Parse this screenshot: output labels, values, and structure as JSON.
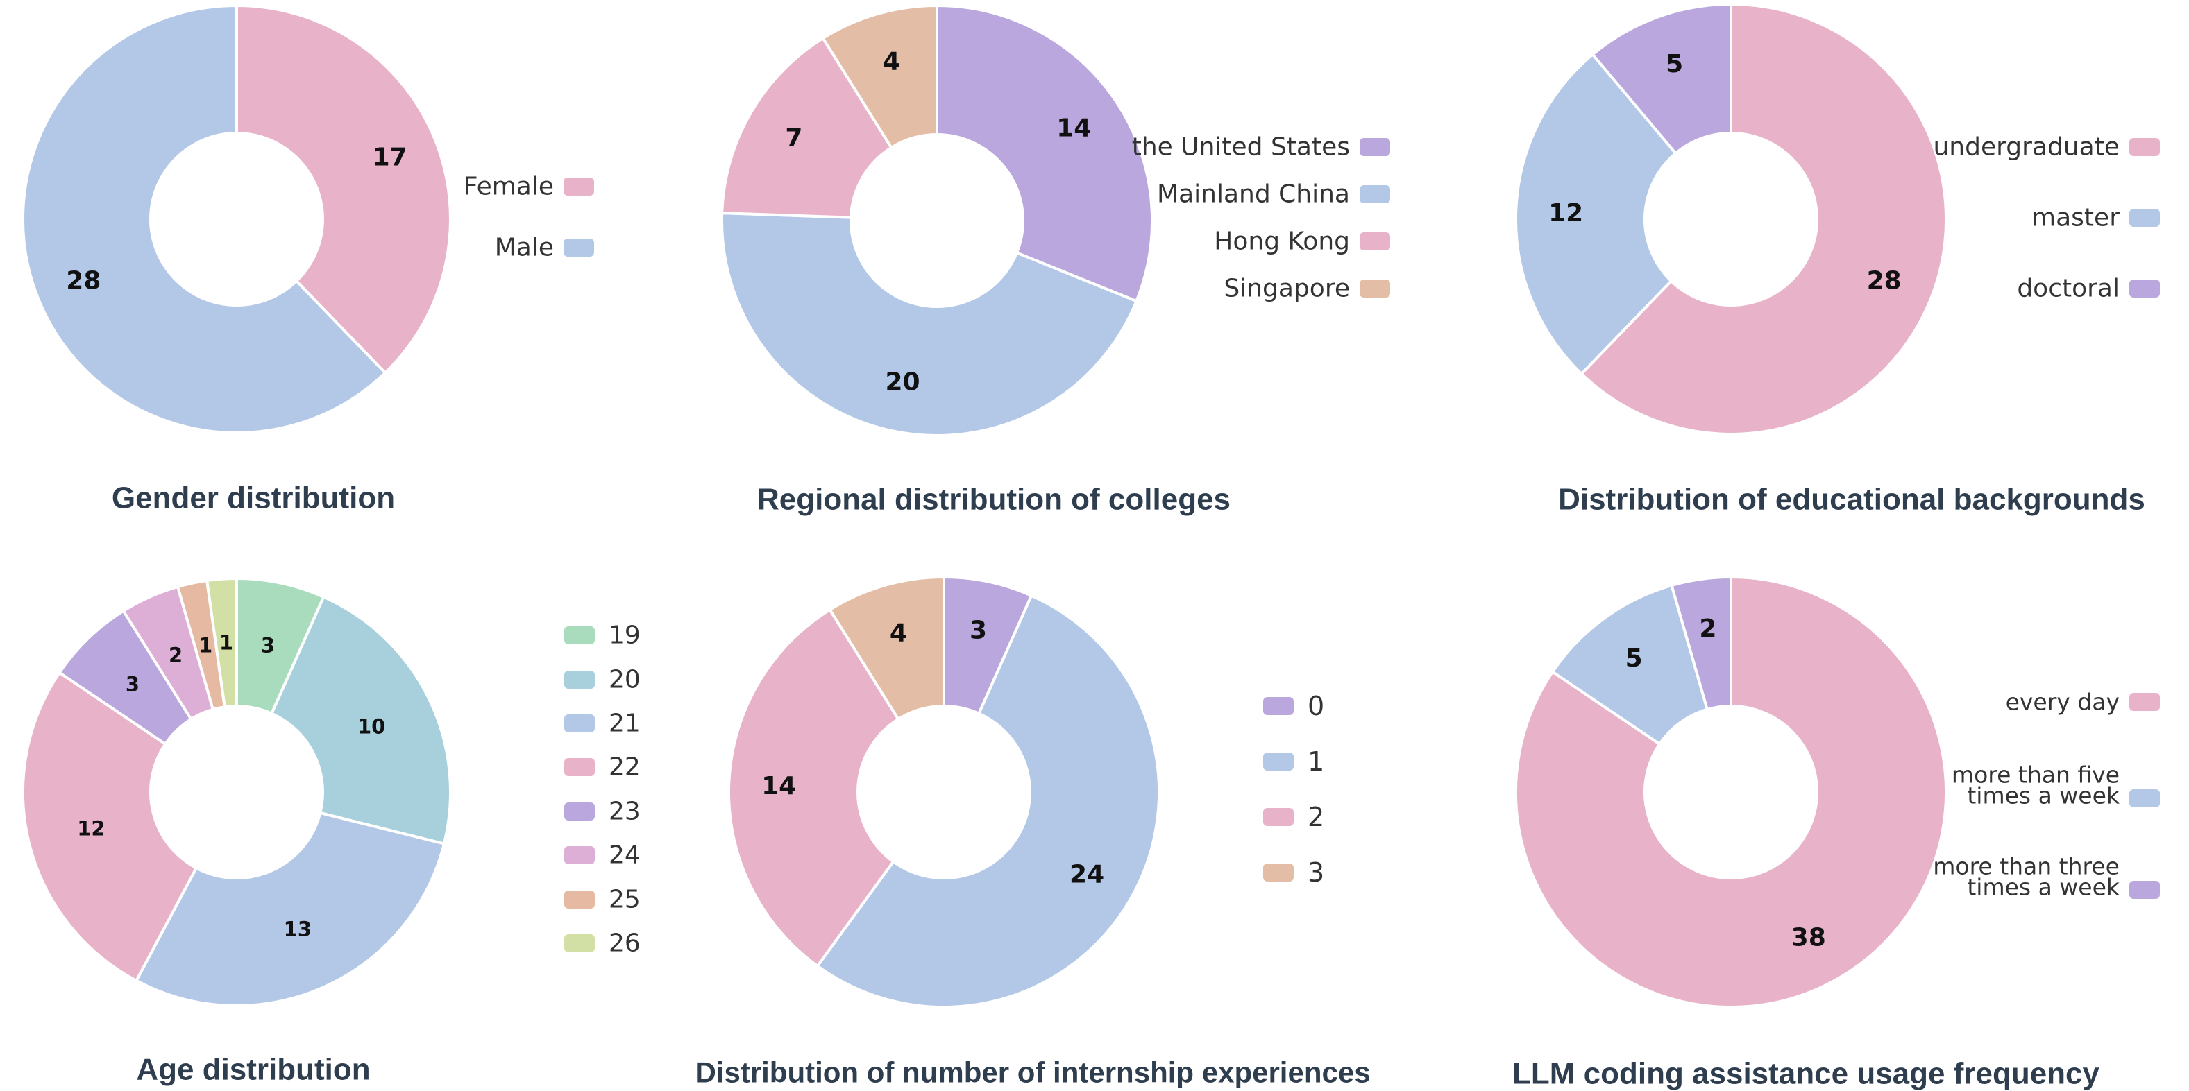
{
  "chart_data": [
    {
      "type": "pie",
      "title": "Gender distribution",
      "categories": [
        "Female",
        "Male"
      ],
      "values": [
        17,
        28
      ],
      "colors": [
        "#e8b3c9",
        "#b3c7e7"
      ],
      "legend_position": "right"
    },
    {
      "type": "pie",
      "title": "Regional distribution of colleges",
      "categories": [
        "the United States",
        "Mainland China",
        "Hong Kong",
        "Singapore"
      ],
      "values": [
        14,
        20,
        7,
        4
      ],
      "colors": [
        "#b9a7dd",
        "#b3c7e7",
        "#e8b3c9",
        "#e3bda6"
      ],
      "legend_position": "right"
    },
    {
      "type": "pie",
      "title": "Distribution of educational backgrounds",
      "categories": [
        "undergraduate",
        "master",
        "doctoral"
      ],
      "values": [
        28,
        12,
        5
      ],
      "colors": [
        "#e8b3c9",
        "#b3c7e7",
        "#b9a7dd"
      ],
      "legend_position": "right"
    },
    {
      "type": "pie",
      "title": "Age distribution",
      "categories": [
        "19",
        "20",
        "21",
        "22",
        "23",
        "24",
        "25",
        "26"
      ],
      "values": [
        3,
        10,
        13,
        12,
        3,
        2,
        1,
        1
      ],
      "colors": [
        "#a8dcbc",
        "#a7d0dc",
        "#b3c7e7",
        "#e8b3c9",
        "#b9a7dd",
        "#ddaed6",
        "#e6b9a2",
        "#d2e0a6"
      ],
      "legend_position": "right"
    },
    {
      "type": "pie",
      "title": "Distribution of number of internship experiences",
      "categories": [
        "0",
        "1",
        "2",
        "3"
      ],
      "values": [
        3,
        24,
        14,
        4
      ],
      "colors": [
        "#b9a7dd",
        "#b3c7e7",
        "#e8b3c9",
        "#e3bda6"
      ],
      "legend_position": "right"
    },
    {
      "type": "pie",
      "title": "LLM coding assistance usage frequency",
      "categories": [
        "every day",
        "more than five times a week",
        "more than three times a week"
      ],
      "legend_lines": [
        [
          "every day"
        ],
        [
          "more than five",
          "times a week"
        ],
        [
          "more than three",
          "times a week"
        ]
      ],
      "values": [
        38,
        5,
        2
      ],
      "colors": [
        "#e8b3c9",
        "#b3c7e7",
        "#b9a7dd"
      ],
      "legend_position": "right"
    }
  ]
}
